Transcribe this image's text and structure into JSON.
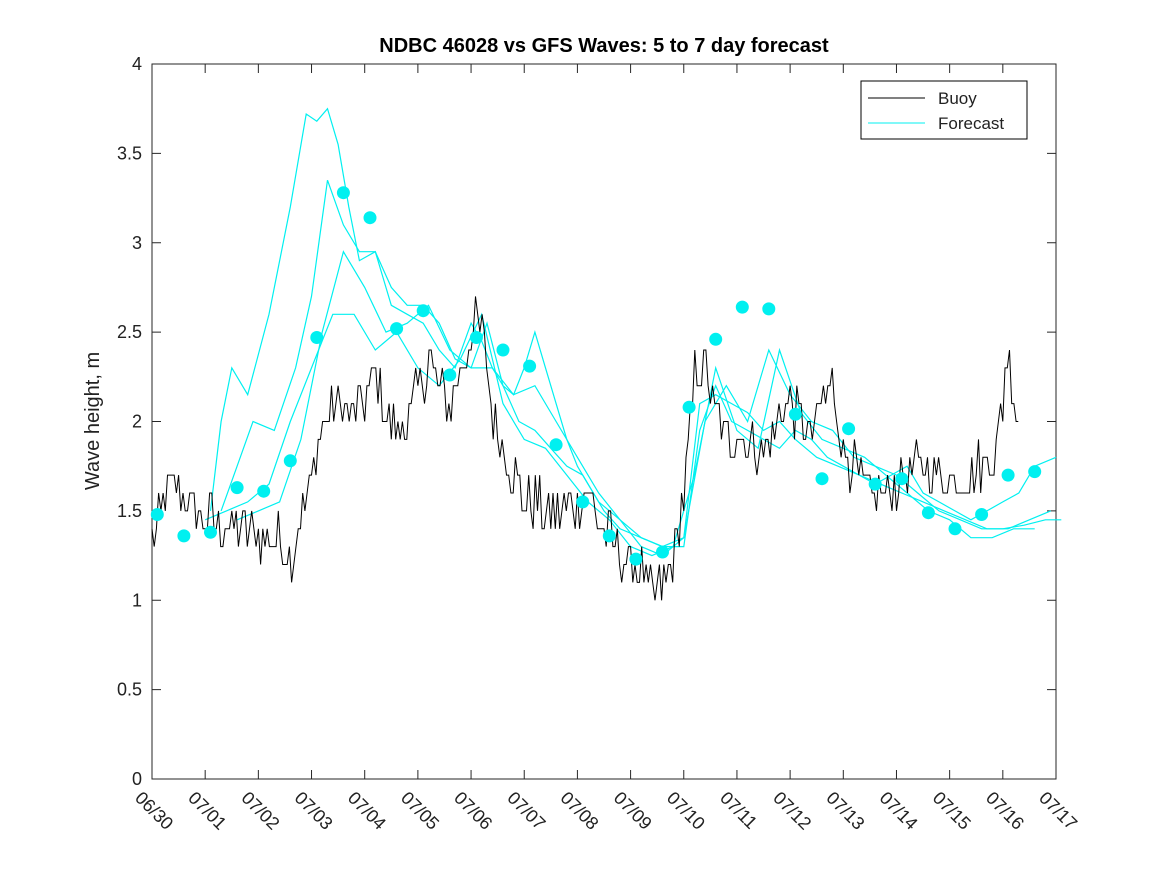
{
  "chart_data": {
    "type": "line",
    "title": "NDBC 46028 vs GFS Waves: 5 to 7 day forecast",
    "xlabel": "",
    "ylabel": "Wave height, m",
    "xlim": [
      "06/30",
      "07/17"
    ],
    "ylim": [
      0,
      4
    ],
    "x_ticks": [
      "06/30",
      "07/01",
      "07/02",
      "07/03",
      "07/04",
      "07/05",
      "07/06",
      "07/07",
      "07/08",
      "07/09",
      "07/10",
      "07/11",
      "07/12",
      "07/13",
      "07/14",
      "07/15",
      "07/16",
      "07/17"
    ],
    "y_ticks": [
      "0",
      "0.5",
      "1",
      "1.5",
      "2",
      "2.5",
      "3",
      "3.5",
      "4"
    ],
    "legend_position": "top-right",
    "colors": {
      "buoy": "#000000",
      "forecast": "#00f0f0"
    },
    "series": [
      {
        "name": "Buoy",
        "kind": "line",
        "anchors_x_days": [
          0,
          0.15,
          0.25,
          0.4,
          0.6,
          0.8,
          1.0,
          1.2,
          1.5,
          1.8,
          2.1,
          2.4,
          2.55,
          2.65,
          2.8,
          3.0,
          3.2,
          3.4,
          3.6,
          3.8,
          4.0,
          4.2,
          4.4,
          4.6,
          4.8,
          5.0,
          5.2,
          5.4,
          5.6,
          5.8,
          6.0,
          6.2,
          6.4,
          6.6,
          6.8,
          7.0,
          7.2,
          7.4,
          7.6,
          7.8,
          8.0,
          8.2,
          8.4,
          8.6,
          8.8,
          9.0,
          9.2,
          9.4,
          9.6,
          9.8,
          10.0,
          10.2,
          10.4,
          10.6,
          10.8,
          11.0,
          11.2,
          11.4,
          11.6,
          11.8,
          12.0,
          12.2,
          12.4,
          12.6,
          12.8,
          13.0,
          13.2,
          13.4,
          13.6,
          13.8,
          14.0,
          14.2,
          14.4,
          14.6,
          14.8,
          15.0,
          15.2,
          15.4,
          15.6,
          15.8,
          15.9,
          16.0,
          16.05,
          16.1,
          16.2,
          16.3
        ],
        "anchors_y_m": [
          1.35,
          1.45,
          1.6,
          1.6,
          1.6,
          1.5,
          1.45,
          1.45,
          1.4,
          1.4,
          1.35,
          1.35,
          1.3,
          1.25,
          1.45,
          1.7,
          1.95,
          2.1,
          2.1,
          2.05,
          2.1,
          2.3,
          2.05,
          1.95,
          2.0,
          2.15,
          2.35,
          2.2,
          2.1,
          2.25,
          2.5,
          2.55,
          2.05,
          1.9,
          1.7,
          1.55,
          1.55,
          1.5,
          1.5,
          1.5,
          1.55,
          1.6,
          1.45,
          1.35,
          1.25,
          1.2,
          1.15,
          1.05,
          1.05,
          1.25,
          1.6,
          2.25,
          2.3,
          2.05,
          1.9,
          1.95,
          1.9,
          1.85,
          1.85,
          2.05,
          2.1,
          2.0,
          1.9,
          2.1,
          2.2,
          1.85,
          1.75,
          1.6,
          1.6,
          1.6,
          1.65,
          1.7,
          1.75,
          1.75,
          1.7,
          1.7,
          1.7,
          1.7,
          1.75,
          1.8,
          1.9,
          2.1,
          2.3,
          2.4,
          2.2,
          2.0
        ]
      },
      {
        "name": "Forecast",
        "kind": "markers",
        "x_days": [
          0.1,
          0.6,
          1.1,
          1.6,
          2.1,
          2.6,
          3.1,
          3.6,
          4.1,
          4.6,
          5.1,
          5.6,
          6.1,
          6.6,
          7.1,
          7.6,
          8.1,
          8.6,
          9.1,
          9.6,
          10.1,
          10.6,
          11.1,
          11.6,
          12.1,
          12.6,
          13.1,
          13.6,
          14.1,
          14.6,
          15.1,
          15.6,
          16.1,
          16.6
        ],
        "y_m": [
          1.48,
          1.36,
          1.38,
          1.63,
          1.61,
          1.78,
          2.47,
          3.28,
          3.14,
          2.52,
          2.62,
          2.26,
          2.47,
          2.4,
          2.31,
          1.87,
          1.55,
          1.36,
          1.23,
          1.27,
          2.08,
          2.46,
          2.64,
          2.63,
          2.04,
          1.68,
          1.96,
          1.65,
          1.68,
          1.49,
          1.4,
          1.48,
          1.7,
          1.72
        ]
      },
      {
        "name": "",
        "kind": "forecast-run",
        "x_days": [
          1.1,
          1.3,
          1.5,
          1.8,
          2.2,
          2.6,
          2.9,
          3.1,
          3.3,
          3.5,
          3.7,
          3.9,
          4.2,
          4.5,
          4.8,
          5.1,
          5.4,
          5.7,
          6.0,
          6.2,
          6.4,
          6.6,
          6.8,
          7.0,
          7.2,
          7.4,
          7.6,
          7.8,
          8.0,
          8.2,
          8.5,
          8.8,
          9.2,
          9.6,
          10.0,
          10.3,
          10.6,
          10.9,
          11.2,
          11.5,
          11.8,
          12.1,
          12.4,
          12.7,
          13.0,
          13.3,
          13.6,
          13.9,
          14.2,
          14.5,
          14.8,
          15.1,
          15.4,
          15.7,
          16.0,
          16.3,
          16.6,
          17.0
        ],
        "y_m": [
          1.5,
          2.0,
          2.3,
          2.15,
          2.6,
          3.2,
          3.72,
          3.68,
          3.75,
          3.55,
          3.2,
          2.9,
          2.95,
          2.65,
          2.6,
          2.55,
          2.4,
          2.3,
          2.55,
          2.45,
          2.3,
          2.2,
          2.15,
          2.3,
          2.5,
          2.3,
          2.1,
          1.9,
          1.75,
          1.65,
          1.5,
          1.4,
          1.35,
          1.3,
          1.3,
          1.95,
          2.2,
          2.0,
          1.95,
          1.9,
          1.85,
          1.95,
          1.9,
          1.8,
          1.75,
          1.7,
          1.65,
          1.7,
          1.75,
          1.6,
          1.55,
          1.5,
          1.45,
          1.5,
          1.55,
          1.6,
          1.75,
          1.8
        ]
      },
      {
        "name": "",
        "kind": "forecast-run",
        "x_days": [
          1.3,
          1.6,
          1.9,
          2.3,
          2.7,
          3.0,
          3.3,
          3.6,
          3.9,
          4.2,
          4.5,
          4.8,
          5.1,
          5.4,
          5.7,
          6.0,
          6.3,
          6.6,
          6.9,
          7.2,
          7.5,
          7.8,
          8.1,
          8.4,
          8.8,
          9.2,
          9.6,
          10.0,
          10.3,
          10.6,
          10.9,
          11.2,
          11.5,
          11.8,
          12.1,
          12.5,
          12.9,
          13.3,
          13.7,
          14.1,
          14.5,
          14.9,
          15.3,
          15.7,
          16.1,
          16.5,
          16.9
        ],
        "y_m": [
          1.5,
          1.75,
          2.0,
          1.95,
          2.3,
          2.7,
          3.35,
          3.1,
          2.95,
          2.95,
          2.75,
          2.65,
          2.65,
          2.55,
          2.35,
          2.3,
          2.55,
          2.2,
          2.0,
          1.95,
          1.85,
          1.75,
          1.7,
          1.55,
          1.45,
          1.35,
          1.3,
          1.35,
          2.1,
          2.15,
          2.1,
          2.05,
          1.95,
          2.0,
          1.9,
          1.8,
          1.75,
          1.7,
          1.65,
          1.6,
          1.55,
          1.5,
          1.45,
          1.4,
          1.4,
          1.45,
          1.5
        ]
      },
      {
        "name": "",
        "kind": "forecast-run",
        "x_days": [
          1.6,
          2.0,
          2.4,
          2.8,
          3.2,
          3.6,
          4.0,
          4.4,
          4.8,
          5.2,
          5.6,
          6.0,
          6.4,
          6.8,
          7.2,
          7.6,
          8.0,
          8.4,
          8.8,
          9.2,
          9.6,
          10.0,
          10.4,
          10.8,
          11.2,
          11.6,
          12.0,
          12.4,
          12.8,
          13.2,
          13.6,
          14.0,
          14.4,
          14.8,
          15.2,
          15.6,
          16.0,
          16.4,
          16.8,
          17.1
        ],
        "y_m": [
          1.45,
          1.5,
          1.55,
          1.9,
          2.5,
          2.95,
          2.75,
          2.5,
          2.55,
          2.65,
          2.4,
          2.3,
          2.3,
          2.15,
          2.2,
          2.0,
          1.8,
          1.6,
          1.45,
          1.3,
          1.25,
          1.35,
          2.0,
          2.2,
          2.0,
          2.4,
          2.15,
          2.0,
          1.95,
          1.8,
          1.75,
          1.7,
          1.6,
          1.5,
          1.45,
          1.4,
          1.4,
          1.42,
          1.45,
          1.45
        ]
      },
      {
        "name": "",
        "kind": "forecast-run",
        "x_days": [
          1.0,
          1.4,
          1.8,
          2.2,
          2.6,
          3.0,
          3.4,
          3.8,
          4.2,
          4.6,
          5.0,
          5.4,
          5.8,
          6.2,
          6.6,
          7.0,
          7.4,
          7.8,
          8.2,
          8.6,
          9.0,
          9.4,
          9.8,
          10.2,
          10.6,
          11.0,
          11.4,
          11.8,
          12.2,
          12.6,
          13.0,
          13.4,
          13.8,
          14.2,
          14.6,
          15.0,
          15.4,
          15.8,
          16.2,
          16.6
        ],
        "y_m": [
          1.45,
          1.5,
          1.55,
          1.65,
          2.0,
          2.3,
          2.6,
          2.6,
          2.4,
          2.5,
          2.3,
          2.2,
          2.35,
          2.6,
          2.1,
          1.9,
          1.85,
          1.7,
          1.55,
          1.45,
          1.3,
          1.25,
          1.3,
          1.7,
          2.3,
          1.95,
          1.85,
          2.4,
          2.05,
          1.9,
          1.85,
          1.8,
          1.7,
          1.6,
          1.5,
          1.45,
          1.35,
          1.35,
          1.4,
          1.4
        ]
      }
    ]
  },
  "legend": {
    "buoy_label": "Buoy",
    "forecast_label": "Forecast"
  }
}
